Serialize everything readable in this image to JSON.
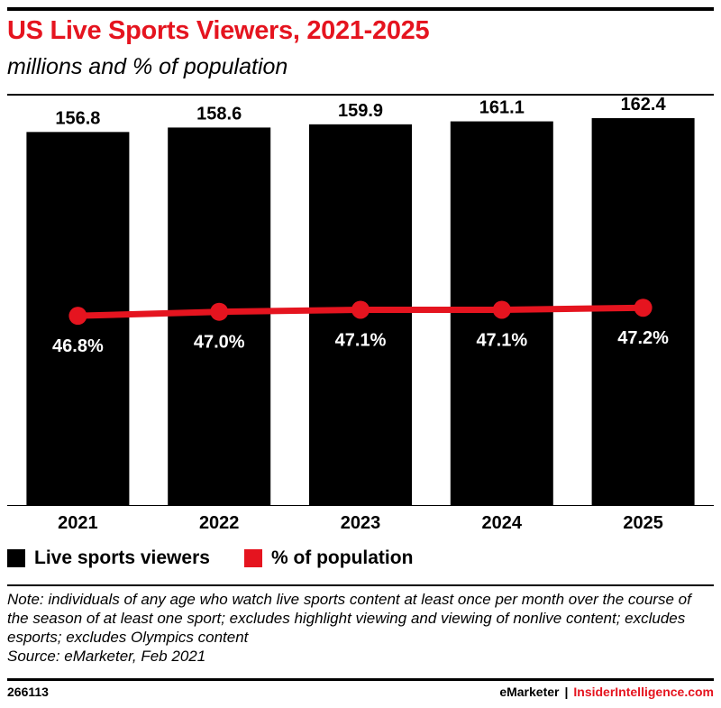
{
  "header": {
    "title": "US Live Sports Viewers, 2021-2025",
    "subtitle": "millions and % of population"
  },
  "legend": {
    "viewers_label": "Live sports viewers",
    "population_label": "% of population"
  },
  "note": "Note: individuals of any age who watch live sports content at least once per month over the course of the season of at least one sport; excludes highlight viewing and viewing of nonlive content; excludes esports; excludes Olympics content",
  "source": "Source: eMarketer, Feb 2021",
  "footer": {
    "chart_id": "266113",
    "brand_left": "eMarketer",
    "brand_sep": "|",
    "brand_right": "InsiderIntelligence.com"
  },
  "colors": {
    "accent": "#e5141f",
    "bar": "#000000"
  },
  "chart_data": {
    "type": "bar",
    "title": "US Live Sports Viewers, 2021-2025",
    "subtitle": "millions and % of population",
    "categories": [
      "2021",
      "2022",
      "2023",
      "2024",
      "2025"
    ],
    "series": [
      {
        "name": "Live sports viewers",
        "type": "bar",
        "values": [
          156.8,
          158.6,
          159.9,
          161.1,
          162.4
        ],
        "labels": [
          "156.8",
          "158.6",
          "159.9",
          "161.1",
          "162.4"
        ],
        "ylim": [
          0,
          170
        ]
      },
      {
        "name": "% of population",
        "type": "line",
        "values": [
          46.8,
          47.0,
          47.1,
          47.1,
          47.2
        ],
        "labels": [
          "46.8%",
          "47.0%",
          "47.1%",
          "47.1%",
          "47.2%"
        ],
        "ylim": [
          40,
          55
        ]
      }
    ],
    "xlabel": "",
    "ylabel": "",
    "grid": false,
    "legend": "bottom-left"
  }
}
